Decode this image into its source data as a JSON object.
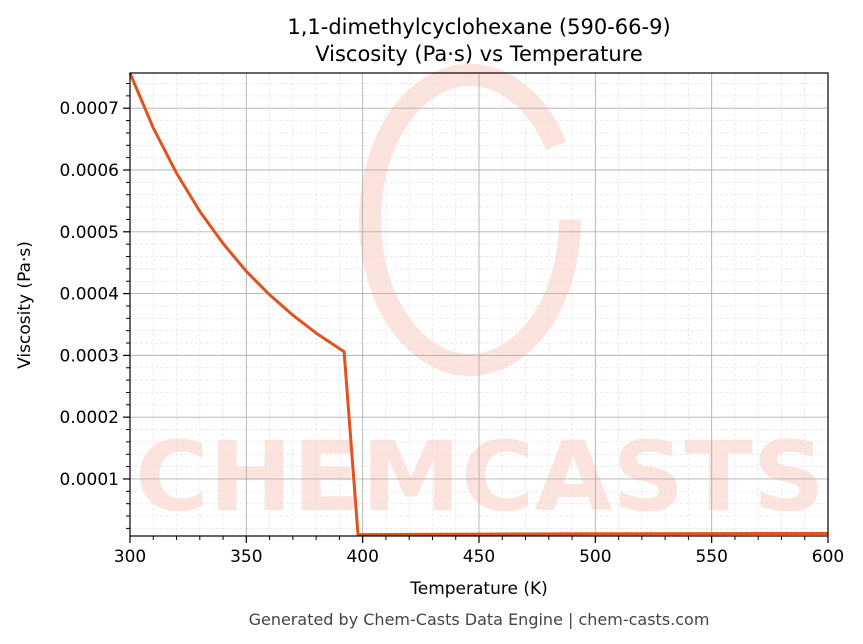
{
  "chart_data": {
    "type": "line",
    "title": "1,1-dimethylcyclohexane (590-66-9)",
    "subtitle": "Viscosity (Pa·s) vs Temperature",
    "xlabel": "Temperature (K)",
    "ylabel": "Viscosity (Pa·s)",
    "xlim": [
      300,
      600
    ],
    "ylim": [
      7.7e-06,
      0.000757
    ],
    "xticks": [
      300,
      350,
      400,
      450,
      500,
      550,
      600
    ],
    "xtick_labels": [
      "300",
      "350",
      "400",
      "450",
      "500",
      "550",
      "600"
    ],
    "yticks": [
      0.0001,
      0.0002,
      0.0003,
      0.0004,
      0.0005,
      0.0006,
      0.0007
    ],
    "ytick_labels": [
      "0.0001",
      "0.0002",
      "0.0003",
      "0.0004",
      "0.0005",
      "0.0006",
      "0.0007"
    ],
    "grid": true,
    "series": [
      {
        "name": "Viscosity",
        "color": "#e0531f",
        "x": [
          300,
          310,
          320,
          330,
          340,
          350,
          360,
          370,
          380,
          392,
          398,
          450,
          500,
          550,
          600
        ],
        "y": [
          0.000757,
          0.000668,
          0.000595,
          0.000533,
          0.000481,
          0.000436,
          0.000398,
          0.000365,
          0.000336,
          0.000306,
          1e-05,
          1.08e-05,
          1.13e-05,
          1.16e-05,
          1.18e-05
        ]
      }
    ]
  },
  "watermark": "CHEMCASTS",
  "footer": "Generated by Chem-Casts Data Engine | chem-casts.com"
}
